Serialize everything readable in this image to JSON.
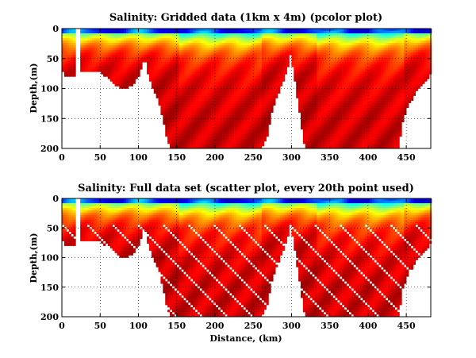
{
  "chart_data": [
    {
      "type": "heatmap",
      "title": "Salinity: Gridded data (1km x 4m) (pcolor plot)",
      "xlabel": "",
      "ylabel": "Depth,(m)",
      "xlim": [
        0,
        482
      ],
      "ylim": [
        0,
        200
      ],
      "y_reversed": true,
      "xticks": [
        0,
        50,
        100,
        150,
        200,
        250,
        300,
        350,
        400,
        450
      ],
      "yticks": [
        0,
        50,
        100,
        150,
        200
      ],
      "grid": true,
      "colormap": "jet",
      "render_style": "pcolor"
    },
    {
      "type": "scatter",
      "title": "Salinity: Full data set (scatter plot, every 20th point used)",
      "xlabel": "Distance, (km)",
      "ylabel": "Depth,(m)",
      "xlim": [
        0,
        482
      ],
      "ylim": [
        0,
        200
      ],
      "y_reversed": true,
      "xticks": [
        0,
        50,
        100,
        150,
        200,
        250,
        300,
        350,
        400,
        450
      ],
      "yticks": [
        0,
        50,
        100,
        150,
        200
      ],
      "grid": true,
      "colormap": "jet",
      "render_style": "scatter"
    }
  ],
  "bathymetry_km_depth": [
    [
      0,
      65
    ],
    [
      5,
      80
    ],
    [
      10,
      80
    ],
    [
      15,
      78
    ],
    [
      20,
      75
    ],
    [
      25,
      72
    ],
    [
      30,
      70
    ],
    [
      40,
      70
    ],
    [
      50,
      72
    ],
    [
      60,
      80
    ],
    [
      70,
      92
    ],
    [
      80,
      100
    ],
    [
      90,
      95
    ],
    [
      100,
      80
    ],
    [
      105,
      60
    ],
    [
      108,
      45
    ],
    [
      112,
      70
    ],
    [
      118,
      95
    ],
    [
      125,
      115
    ],
    [
      132,
      150
    ],
    [
      138,
      185
    ],
    [
      142,
      198
    ],
    [
      200,
      198
    ],
    [
      250,
      198
    ],
    [
      262,
      196
    ],
    [
      268,
      180
    ],
    [
      274,
      140
    ],
    [
      282,
      110
    ],
    [
      290,
      85
    ],
    [
      296,
      60
    ],
    [
      299,
      40
    ],
    [
      302,
      65
    ],
    [
      306,
      100
    ],
    [
      312,
      150
    ],
    [
      316,
      190
    ],
    [
      320,
      198
    ],
    [
      380,
      198
    ],
    [
      440,
      198
    ],
    [
      446,
      150
    ],
    [
      452,
      130
    ],
    [
      460,
      110
    ],
    [
      468,
      95
    ],
    [
      476,
      85
    ],
    [
      482,
      75
    ]
  ],
  "notch_km": [
    18,
    22
  ]
}
